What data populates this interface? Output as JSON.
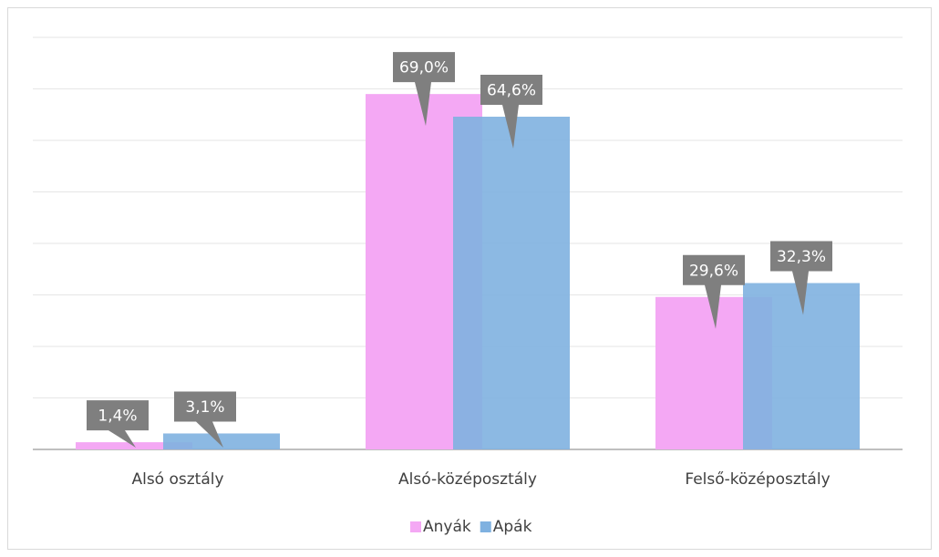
{
  "chart_data": {
    "type": "bar",
    "categories": [
      "Alsó osztály",
      "Alsó-középosztály",
      "Felső-középosztály"
    ],
    "series": [
      {
        "name": "Anyák",
        "color": "#f4a8f4",
        "values": [
          1.4,
          69.0,
          29.6
        ],
        "value_labels": [
          "1,4%",
          "69,0%",
          "29,6%"
        ]
      },
      {
        "name": "Apák",
        "color": "#7fb1e0",
        "values": [
          3.1,
          64.6,
          32.3
        ],
        "value_labels": [
          "3,1%",
          "64,6%",
          "32,3%"
        ]
      }
    ],
    "ylim": [
      0,
      80
    ],
    "yticks": [
      0,
      10,
      20,
      30,
      40,
      50,
      60,
      70,
      80
    ],
    "grid": true,
    "legend": "bottom"
  }
}
